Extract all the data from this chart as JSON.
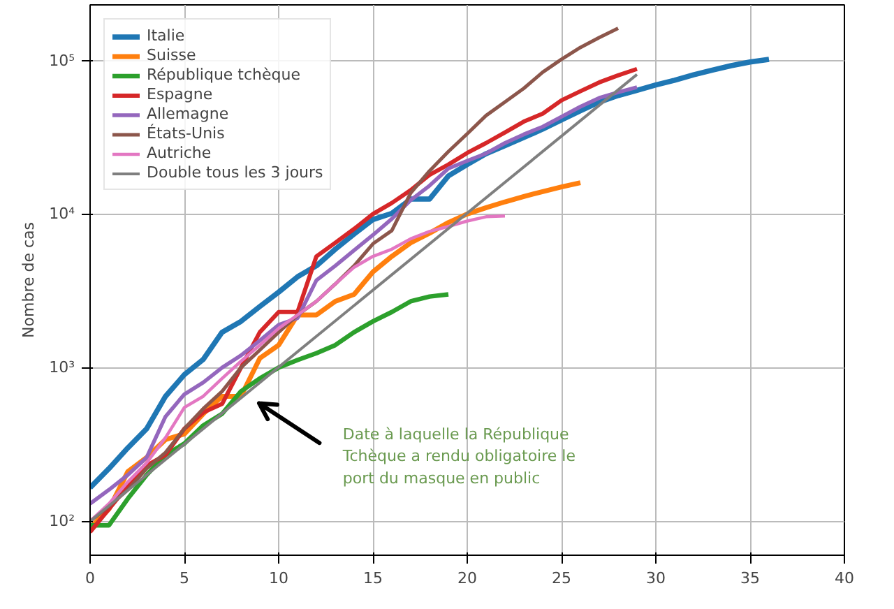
{
  "chart_data": {
    "type": "line",
    "ylabel": "Nombre de cas",
    "log": "y",
    "grid": true,
    "legend": "top left",
    "line_style": "solid",
    "marker": "none",
    "xlim": [
      0,
      40
    ],
    "xticks": [
      0,
      5,
      10,
      15,
      20,
      25,
      30,
      35,
      40
    ],
    "ylim": [
      60,
      230000
    ],
    "yticks": [
      {
        "value": 100,
        "label": "10²"
      },
      {
        "value": 1000,
        "label": "10³"
      },
      {
        "value": 10000,
        "label": "10⁴"
      },
      {
        "value": 100000,
        "label": "10⁵"
      }
    ],
    "series": [
      {
        "name": "Italie",
        "color": "#1f77b4",
        "x": [
          0,
          1,
          2,
          3,
          4,
          5,
          6,
          7,
          8,
          9,
          10,
          11,
          12,
          13,
          14,
          15,
          16,
          17,
          18,
          19,
          20,
          21,
          22,
          23,
          24,
          25,
          26,
          27,
          28,
          29,
          30,
          31,
          32,
          33,
          34,
          35,
          36
        ],
        "values": [
          165,
          220,
          300,
          400,
          650,
          900,
          1130,
          1700,
          2000,
          2500,
          3100,
          3900,
          4600,
          5900,
          7400,
          9200,
          10100,
          12500,
          12500,
          17700,
          21000,
          24700,
          27900,
          31500,
          35700,
          41000,
          47000,
          53600,
          59100,
          63900,
          69200,
          74400,
          80600,
          86500,
          92500,
          97700,
          101700
        ]
      },
      {
        "name": "Suisse",
        "color": "#ff7f0e",
        "x": [
          0,
          1,
          2,
          3,
          4,
          5,
          6,
          7,
          8,
          9,
          10,
          11,
          12,
          13,
          14,
          15,
          16,
          17,
          18,
          19,
          20,
          21,
          22,
          23,
          24,
          25,
          26
        ],
        "values": [
          90,
          120,
          210,
          260,
          340,
          370,
          500,
          650,
          650,
          1150,
          1400,
          2200,
          2200,
          2700,
          3000,
          4200,
          5300,
          6500,
          7500,
          8800,
          10000,
          11000,
          12000,
          13000,
          14000,
          15000,
          16000
        ]
      },
      {
        "name": "République tchèque",
        "color": "#2ca02c",
        "x": [
          0,
          1,
          2,
          3,
          4,
          5,
          6,
          7,
          8,
          9,
          10,
          11,
          12,
          13,
          14,
          15,
          16,
          17,
          18,
          19
        ],
        "values": [
          94,
          94,
          140,
          200,
          270,
          320,
          420,
          500,
          700,
          850,
          1000,
          1120,
          1240,
          1400,
          1700,
          2000,
          2300,
          2700,
          2900,
          3000
        ]
      },
      {
        "name": "Espagne",
        "color": "#d62728",
        "x": [
          0,
          1,
          2,
          3,
          4,
          5,
          6,
          7,
          8,
          9,
          10,
          11,
          12,
          13,
          14,
          15,
          16,
          17,
          18,
          19,
          20,
          21,
          22,
          23,
          24,
          25,
          26,
          27,
          28,
          29
        ],
        "values": [
          85,
          120,
          170,
          230,
          270,
          400,
          510,
          580,
          1000,
          1700,
          2300,
          2300,
          5300,
          6500,
          8000,
          10000,
          11800,
          14300,
          18000,
          21000,
          25000,
          29000,
          34000,
          40000,
          45000,
          55000,
          63000,
          72000,
          80000,
          88000
        ]
      },
      {
        "name": "Allemagne",
        "color": "#9467bd",
        "x": [
          0,
          1,
          2,
          3,
          4,
          5,
          6,
          7,
          8,
          9,
          10,
          11,
          12,
          13,
          14,
          15,
          16,
          17,
          18,
          19,
          20,
          21,
          22,
          23,
          24,
          25,
          26,
          27,
          28,
          29
        ],
        "values": [
          130,
          160,
          200,
          260,
          480,
          670,
          800,
          1000,
          1200,
          1500,
          1900,
          2100,
          3700,
          4600,
          5800,
          7300,
          9300,
          12300,
          15300,
          19800,
          22200,
          24800,
          29000,
          33000,
          37000,
          43000,
          50000,
          57000,
          62000,
          67000
        ]
      },
      {
        "name": "États-Unis",
        "color": "#8c564b",
        "x": [
          0,
          1,
          2,
          3,
          4,
          5,
          6,
          7,
          8,
          9,
          10,
          11,
          12,
          13,
          14,
          15,
          16,
          17,
          18,
          19,
          20,
          21,
          22,
          23,
          24,
          25,
          26,
          27,
          28
        ],
        "values": [
          100,
          125,
          160,
          220,
          280,
          400,
          540,
          700,
          1000,
          1300,
          1700,
          2200,
          2700,
          3500,
          4600,
          6400,
          7800,
          13700,
          19100,
          25500,
          33300,
          43800,
          53700,
          65800,
          83800,
          101700,
          121500,
          140900,
          161800
        ]
      },
      {
        "name": "Autriche",
        "color": "#e377c2",
        "x": [
          0,
          1,
          2,
          3,
          4,
          5,
          6,
          7,
          8,
          9,
          10,
          11,
          12,
          13,
          14,
          15,
          16,
          17,
          18,
          19,
          20,
          21,
          22
        ],
        "values": [
          100,
          130,
          180,
          240,
          350,
          550,
          650,
          850,
          1100,
          1400,
          1800,
          2200,
          2700,
          3500,
          4500,
          5300,
          5900,
          6900,
          7700,
          8300,
          9000,
          9600,
          9700
        ]
      },
      {
        "name": "Double tous les 3 jours",
        "color": "#7f7f7f",
        "x": [
          0,
          29
        ],
        "values": [
          100,
          81000
        ]
      }
    ],
    "annotations": [
      "Date à laquelle la République\nTchèque a rendu obligatoire le\nport du masque en public"
    ]
  }
}
